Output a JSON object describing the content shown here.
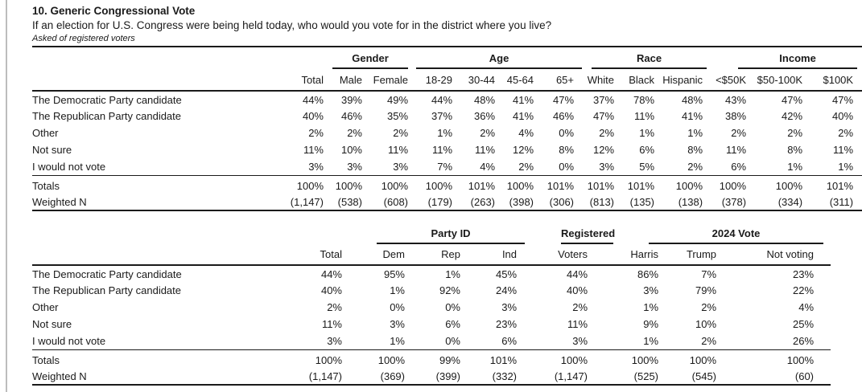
{
  "question": {
    "number_title": "10. Generic Congressional Vote",
    "text": "If an election for U.S. Congress were being held today, who would you vote for in the district where you live?",
    "note": "Asked of registered voters"
  },
  "table1": {
    "groups": [
      {
        "label": "Gender"
      },
      {
        "label": "Age"
      },
      {
        "label": "Race"
      },
      {
        "label": "Income"
      }
    ],
    "columns": [
      "Total",
      "Male",
      "Female",
      "18-29",
      "30-44",
      "45-64",
      "65+",
      "White",
      "Black",
      "Hispanic",
      "<$50K",
      "$50-100K",
      "$100K"
    ],
    "rows": [
      {
        "label": "The Democratic Party candidate",
        "values": [
          "44%",
          "39%",
          "49%",
          "44%",
          "48%",
          "41%",
          "47%",
          "37%",
          "78%",
          "48%",
          "43%",
          "47%",
          "47%"
        ]
      },
      {
        "label": "The Republican Party candidate",
        "values": [
          "40%",
          "46%",
          "35%",
          "37%",
          "36%",
          "41%",
          "46%",
          "47%",
          "11%",
          "41%",
          "38%",
          "42%",
          "40%"
        ]
      },
      {
        "label": "Other",
        "values": [
          "2%",
          "2%",
          "2%",
          "1%",
          "2%",
          "4%",
          "0%",
          "2%",
          "1%",
          "1%",
          "2%",
          "2%",
          "2%"
        ]
      },
      {
        "label": "Not sure",
        "values": [
          "11%",
          "10%",
          "11%",
          "11%",
          "11%",
          "12%",
          "8%",
          "12%",
          "6%",
          "8%",
          "11%",
          "8%",
          "11%"
        ]
      },
      {
        "label": "I would not vote",
        "values": [
          "3%",
          "3%",
          "3%",
          "7%",
          "4%",
          "2%",
          "0%",
          "3%",
          "5%",
          "2%",
          "6%",
          "1%",
          "1%"
        ]
      }
    ],
    "footer": [
      {
        "label": "Totals",
        "values": [
          "100%",
          "100%",
          "100%",
          "100%",
          "101%",
          "100%",
          "101%",
          "101%",
          "101%",
          "100%",
          "100%",
          "100%",
          "101%"
        ]
      },
      {
        "label": "Weighted N",
        "values": [
          "(1,147)",
          "(538)",
          "(608)",
          "(179)",
          "(263)",
          "(398)",
          "(306)",
          "(813)",
          "(135)",
          "(138)",
          "(378)",
          "(334)",
          "(311)"
        ]
      }
    ]
  },
  "table2": {
    "groups": [
      {
        "label": "Party ID"
      },
      {
        "label": "Registered"
      },
      {
        "label": "2024 Vote"
      }
    ],
    "columns": [
      "Total",
      "Dem",
      "Rep",
      "Ind",
      "Voters",
      "Harris",
      "Trump",
      "Not voting"
    ],
    "rows": [
      {
        "label": "The Democratic Party candidate",
        "values": [
          "44%",
          "95%",
          "1%",
          "45%",
          "44%",
          "86%",
          "7%",
          "23%"
        ]
      },
      {
        "label": "The Republican Party candidate",
        "values": [
          "40%",
          "1%",
          "92%",
          "24%",
          "40%",
          "3%",
          "79%",
          "22%"
        ]
      },
      {
        "label": "Other",
        "values": [
          "2%",
          "0%",
          "0%",
          "3%",
          "2%",
          "1%",
          "2%",
          "4%"
        ]
      },
      {
        "label": "Not sure",
        "values": [
          "11%",
          "3%",
          "6%",
          "23%",
          "11%",
          "9%",
          "10%",
          "25%"
        ]
      },
      {
        "label": "I would not vote",
        "values": [
          "3%",
          "1%",
          "0%",
          "6%",
          "3%",
          "1%",
          "2%",
          "26%"
        ]
      }
    ],
    "footer": [
      {
        "label": "Totals",
        "values": [
          "100%",
          "100%",
          "99%",
          "101%",
          "100%",
          "100%",
          "100%",
          "100%"
        ]
      },
      {
        "label": "Weighted N",
        "values": [
          "(1,147)",
          "(369)",
          "(399)",
          "(332)",
          "(1,147)",
          "(525)",
          "(545)",
          "(60)"
        ]
      }
    ]
  },
  "colors": {
    "text": "#1a1a1a",
    "rule": "#1a1a1a",
    "page_edge": "#bdbdbd",
    "background": "#ffffff"
  }
}
